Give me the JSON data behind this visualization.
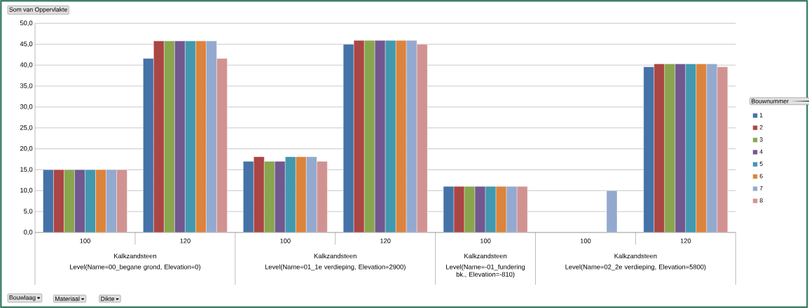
{
  "chart_data": {
    "type": "bar",
    "title": "Som van Oppervlakte",
    "legend_title": "Bouwnummer",
    "categories": [
      "100",
      "120",
      "100",
      "120",
      "100",
      "100",
      "120"
    ],
    "series": [
      {
        "name": "1",
        "color": "#4572a7",
        "values": [
          15.0,
          41.6,
          17.0,
          45.0,
          11.0,
          null,
          39.6
        ]
      },
      {
        "name": "2",
        "color": "#aa4643",
        "values": [
          15.0,
          45.8,
          18.1,
          45.9,
          11.0,
          null,
          40.3
        ]
      },
      {
        "name": "3",
        "color": "#89a54e",
        "values": [
          15.0,
          45.8,
          17.0,
          45.9,
          11.0,
          null,
          40.3
        ]
      },
      {
        "name": "4",
        "color": "#71588f",
        "values": [
          15.0,
          45.8,
          17.0,
          45.9,
          11.0,
          null,
          40.3
        ]
      },
      {
        "name": "5",
        "color": "#4198af",
        "values": [
          15.0,
          45.8,
          18.1,
          45.9,
          11.0,
          null,
          40.3
        ]
      },
      {
        "name": "6",
        "color": "#db843d",
        "values": [
          15.0,
          45.8,
          18.1,
          45.9,
          11.0,
          null,
          40.3
        ]
      },
      {
        "name": "7",
        "color": "#93a9cf",
        "values": [
          15.0,
          45.8,
          18.1,
          45.9,
          11.0,
          10.0,
          40.3
        ]
      },
      {
        "name": "8",
        "color": "#d19392",
        "values": [
          15.0,
          41.6,
          17.0,
          45.0,
          11.0,
          null,
          39.6
        ]
      }
    ],
    "ylim": [
      0,
      50
    ],
    "yticks": [
      {
        "value": 0,
        "label": "0,0"
      },
      {
        "value": 5,
        "label": "5,0"
      },
      {
        "value": 10,
        "label": "10,0"
      },
      {
        "value": 15,
        "label": "15,0"
      },
      {
        "value": 20,
        "label": "20,0"
      },
      {
        "value": 25,
        "label": "25,0"
      },
      {
        "value": 30,
        "label": "30,0"
      },
      {
        "value": 35,
        "label": "35,0"
      },
      {
        "value": 40,
        "label": "40,0"
      },
      {
        "value": 45,
        "label": "45,0"
      },
      {
        "value": 50,
        "label": "50,0"
      }
    ],
    "grid": "y",
    "legend": "right",
    "annotations": [
      "Kalkzandsteen",
      "Level(Name=00_begane grond, Elevation=0)",
      "Kalkzandsteen",
      "Level(Name=01_1e verdieping, Elevation=2900)",
      "Kalkzandsteen",
      "Level(Name=-01_fundering bk., Elevation=-810)",
      "Kalkzandsteen",
      "Level(Name=02_2e verdieping, Elevation=5800)",
      "Bouwlaag",
      "Materiaal",
      "Dikte"
    ]
  }
}
